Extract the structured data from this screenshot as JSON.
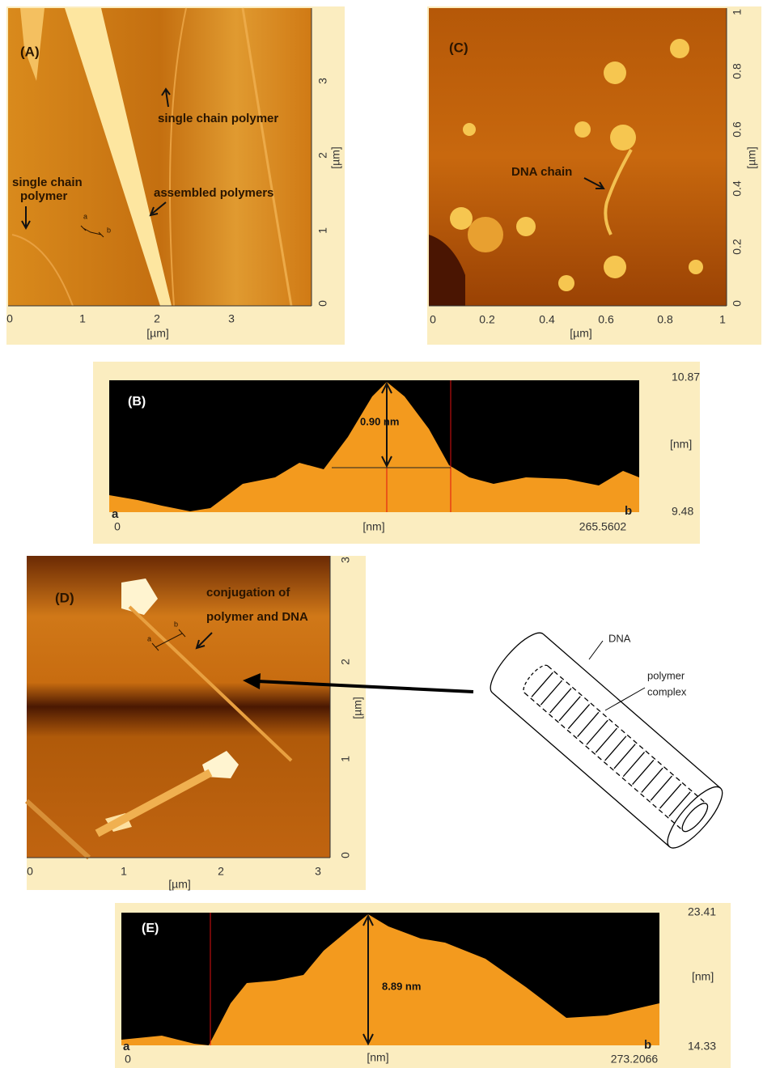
{
  "panel_a": {
    "label": "(A)",
    "annotations": [
      "single  chain  polymer",
      "assembled polymers",
      "single chain",
      "polymer",
      "a",
      "b"
    ],
    "right_ticks": [
      "3",
      "2",
      "1",
      "0"
    ],
    "right_unit": "[µm]",
    "bottom_ticks": [
      "0",
      "1",
      "2",
      "3"
    ],
    "bottom_unit": "[µm]"
  },
  "panel_b": {
    "label": "(B)",
    "measure": "0.90 nm",
    "top_value": "10.87",
    "bottom_value": "9.48",
    "y_unit": "[nm]",
    "x_start": "0",
    "x_end": "265.5602",
    "x_unit": "[nm]",
    "end_a": "a",
    "end_b": "b"
  },
  "panel_c": {
    "label": "(C)",
    "annotations": [
      "DNA chain"
    ],
    "right_ticks": [
      "1",
      "0.8",
      "0.6",
      "0.4",
      "0.2",
      "0"
    ],
    "right_unit": "[µm]",
    "bottom_ticks": [
      "0",
      "0.2",
      "0.4",
      "0.6",
      "0.8",
      "1"
    ],
    "bottom_unit": "[µm]"
  },
  "panel_d": {
    "label": "(D)",
    "annotations": [
      "conjugation of",
      "polymer and DNA",
      "a",
      "b"
    ],
    "right_ticks": [
      "3",
      "2",
      "1",
      "0"
    ],
    "right_unit": "[µm]",
    "bottom_ticks": [
      "0",
      "1",
      "2",
      "3"
    ],
    "bottom_unit": "[µm]"
  },
  "diagram": {
    "labels": [
      "DNA",
      "polymer",
      "complex"
    ]
  },
  "panel_e": {
    "label": "(E)",
    "measure": "8.89 nm",
    "top_value": "23.41",
    "bottom_value": "14.33",
    "y_unit": "[nm]",
    "x_start": "0",
    "x_end": "273.2066",
    "x_unit": "[nm]",
    "end_a": "a",
    "end_b": "b"
  }
}
